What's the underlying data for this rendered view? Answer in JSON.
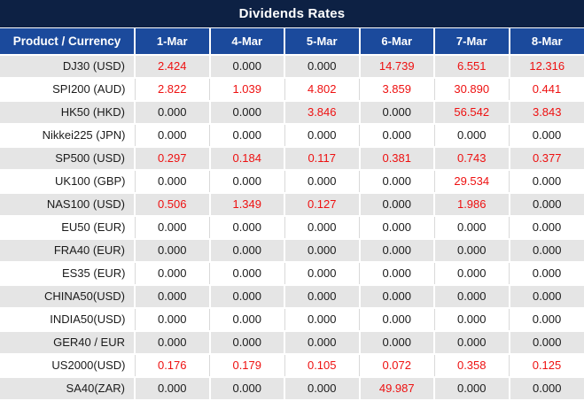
{
  "title_bar": {
    "title": "Dividends Rates"
  },
  "colors": {
    "title_bg": "#0d2144",
    "header_bg": "#1b4a9c",
    "header_text": "#ffffff",
    "row_alt_bg": "#e5e5e5",
    "row_bg": "#ffffff",
    "zero_text": "#1b1b1b",
    "nonzero_text": "#ee1111",
    "grid_line": "#d9d9d9"
  },
  "chart_data": {
    "type": "table",
    "title": "Dividends Rates",
    "columns": [
      "Product / Currency",
      "1-Mar",
      "4-Mar",
      "5-Mar",
      "6-Mar",
      "7-Mar",
      "8-Mar"
    ],
    "rows": [
      {
        "product": "DJ30 (USD)",
        "values": [
          "2.424",
          "0.000",
          "0.000",
          "14.739",
          "6.551",
          "12.316"
        ]
      },
      {
        "product": "SPI200 (AUD)",
        "values": [
          "2.822",
          "1.039",
          "4.802",
          "3.859",
          "30.890",
          "0.441"
        ]
      },
      {
        "product": "HK50 (HKD)",
        "values": [
          "0.000",
          "0.000",
          "3.846",
          "0.000",
          "56.542",
          "3.843"
        ]
      },
      {
        "product": "Nikkei225 (JPN)",
        "values": [
          "0.000",
          "0.000",
          "0.000",
          "0.000",
          "0.000",
          "0.000"
        ]
      },
      {
        "product": "SP500 (USD)",
        "values": [
          "0.297",
          "0.184",
          "0.117",
          "0.381",
          "0.743",
          "0.377"
        ]
      },
      {
        "product": "UK100 (GBP)",
        "values": [
          "0.000",
          "0.000",
          "0.000",
          "0.000",
          "29.534",
          "0.000"
        ]
      },
      {
        "product": "NAS100 (USD)",
        "values": [
          "0.506",
          "1.349",
          "0.127",
          "0.000",
          "1.986",
          "0.000"
        ]
      },
      {
        "product": "EU50 (EUR)",
        "values": [
          "0.000",
          "0.000",
          "0.000",
          "0.000",
          "0.000",
          "0.000"
        ]
      },
      {
        "product": "FRA40 (EUR)",
        "values": [
          "0.000",
          "0.000",
          "0.000",
          "0.000",
          "0.000",
          "0.000"
        ]
      },
      {
        "product": "ES35 (EUR)",
        "values": [
          "0.000",
          "0.000",
          "0.000",
          "0.000",
          "0.000",
          "0.000"
        ]
      },
      {
        "product": "CHINA50(USD)",
        "values": [
          "0.000",
          "0.000",
          "0.000",
          "0.000",
          "0.000",
          "0.000"
        ]
      },
      {
        "product": "INDIA50(USD)",
        "values": [
          "0.000",
          "0.000",
          "0.000",
          "0.000",
          "0.000",
          "0.000"
        ]
      },
      {
        "product": "GER40 / EUR",
        "values": [
          "0.000",
          "0.000",
          "0.000",
          "0.000",
          "0.000",
          "0.000"
        ]
      },
      {
        "product": "US2000(USD)",
        "values": [
          "0.176",
          "0.179",
          "0.105",
          "0.072",
          "0.358",
          "0.125"
        ]
      },
      {
        "product": "SA40(ZAR)",
        "values": [
          "0.000",
          "0.000",
          "0.000",
          "49.987",
          "0.000",
          "0.000"
        ]
      }
    ]
  }
}
